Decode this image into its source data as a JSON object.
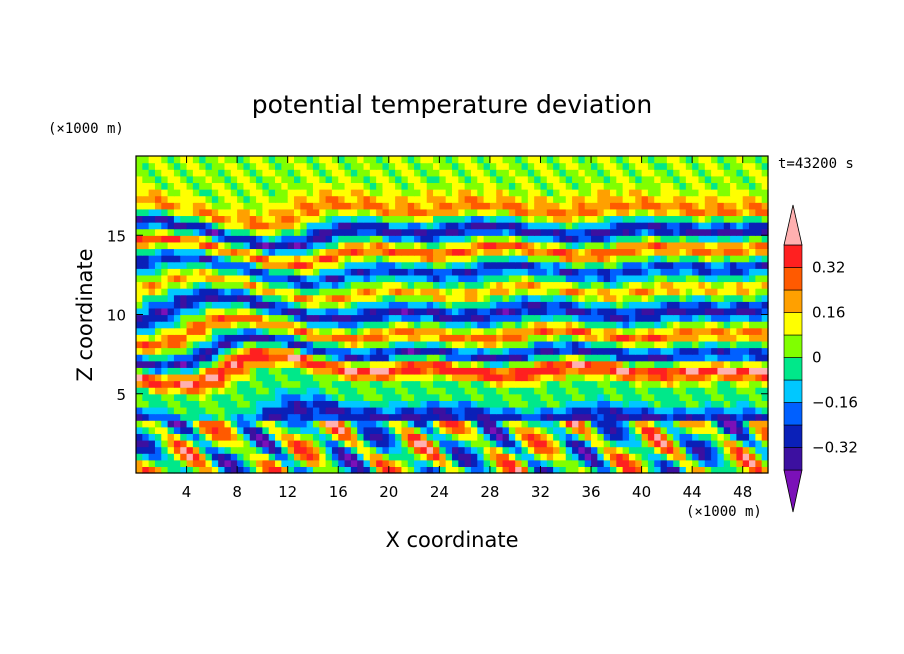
{
  "chart_data": {
    "type": "heatmap",
    "title": "potential temperature deviation",
    "xlabel": "X coordinate",
    "ylabel": "Z coordinate",
    "x_unit": "(×1000 m)",
    "y_unit": "(×1000 m)",
    "time_label": "t=43200 s",
    "xlim": [
      0,
      50
    ],
    "ylim": [
      0,
      20
    ],
    "x_ticks": [
      4,
      8,
      12,
      16,
      20,
      24,
      28,
      32,
      36,
      40,
      44,
      48
    ],
    "y_ticks": [
      5,
      10,
      15
    ],
    "colorbar": {
      "levels": [
        -0.4,
        -0.32,
        -0.24,
        -0.16,
        -0.08,
        0,
        0.08,
        0.16,
        0.24,
        0.32,
        0.4
      ],
      "tick_labels": [
        "0.32",
        "0.16",
        "0",
        "−0.16",
        "−0.32"
      ],
      "tick_values": [
        0.32,
        0.16,
        0,
        -0.16,
        -0.32
      ],
      "colors": [
        "#7b10b8",
        "#3c10a0",
        "#0a20b8",
        "#0060ff",
        "#00c8ff",
        "#00e88a",
        "#80ff00",
        "#ffff00",
        "#ffa000",
        "#ff5a00",
        "#ff2020",
        "#ffb0b0"
      ],
      "extend": "both"
    },
    "field": {
      "description_bands": [
        {
          "z": 18.0,
          "value": 0.05
        },
        {
          "z": 16.5,
          "value": 0.26
        },
        {
          "z": 15.2,
          "value": -0.38
        },
        {
          "z": 14.0,
          "value": 0.33
        },
        {
          "z": 12.8,
          "value": -0.3
        },
        {
          "z": 11.5,
          "value": 0.22
        },
        {
          "z": 10.2,
          "value": -0.36
        },
        {
          "z": 8.8,
          "value": 0.3
        },
        {
          "z": 7.6,
          "value": -0.35
        },
        {
          "z": 6.6,
          "value": 0.42
        },
        {
          "z": 5.6,
          "value": -0.02
        },
        {
          "z": 4.6,
          "value": -0.01
        },
        {
          "z": 3.5,
          "value": -0.34
        },
        {
          "z": 1.5,
          "value": 0.1
        }
      ]
    }
  }
}
